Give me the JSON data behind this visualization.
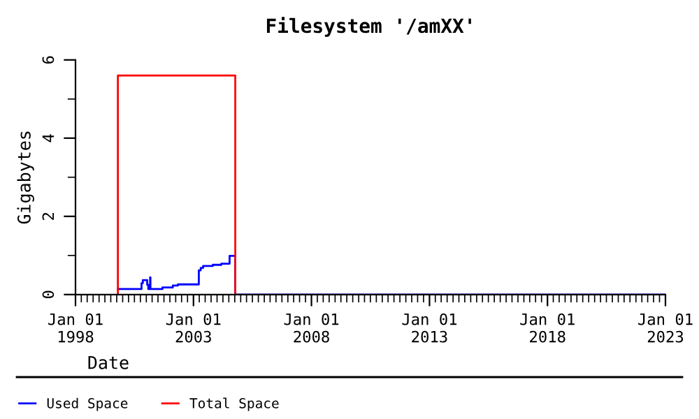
{
  "chart_data": {
    "type": "step",
    "title": "Filesystem '/amXX'",
    "xlabel": "Date",
    "ylabel": "Gigabytes",
    "series": [
      {
        "name": "Used Space",
        "color": "#0000ff",
        "x": [
          "1999-10-19",
          "2000-10-19",
          "2000-11-08",
          "2001-01-15",
          "2001-02-01",
          "2001-03-01",
          "2001-03-06",
          "2001-09-08",
          "2002-02-15",
          "2002-05-05",
          "2003-03-25",
          "2003-04-23",
          "2003-05-30",
          "2003-10-27",
          "2004-03-07",
          "2004-07-13",
          "2004-10-09",
          "2023-01-01"
        ],
        "values": [
          0.14,
          0.29,
          0.37,
          0.25,
          0.14,
          0.44,
          0.14,
          0.18,
          0.23,
          0.26,
          0.62,
          0.68,
          0.73,
          0.76,
          0.79,
          0.99,
          0,
          0
        ]
      },
      {
        "name": "Total Space",
        "color": "#ff0000",
        "type": "line",
        "x": [
          "1999-10-19",
          "1999-10-19",
          "2004-10-09",
          "2004-10-09"
        ],
        "values": [
          0,
          5.6,
          5.6,
          0
        ]
      }
    ],
    "xlim": [
      "1998-01-01",
      "2023-01-01"
    ],
    "xticks": [
      {
        "value": "1998-01-01",
        "label": "Jan 01\n1998"
      },
      {
        "value": "2003-01-01",
        "label": "Jan 01\n2003"
      },
      {
        "value": "2008-01-01",
        "label": "Jan 01\n2008"
      },
      {
        "value": "2013-01-01",
        "label": "Jan 01\n2013"
      },
      {
        "value": "2018-01-01",
        "label": "Jan 01\n2018"
      },
      {
        "value": "2023-01-01",
        "label": "Jan 01\n2023"
      }
    ],
    "ylim": [
      0,
      6
    ],
    "yticks": [
      0,
      2,
      4,
      6
    ],
    "grid": false,
    "legend": "bottom left"
  }
}
